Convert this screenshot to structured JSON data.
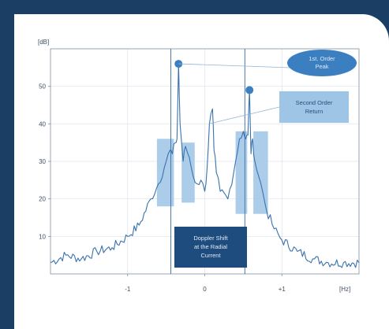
{
  "chart_data": {
    "type": "line",
    "ylabel": "[dB]",
    "xlabel": "[Hz]",
    "ylim": [
      0,
      60
    ],
    "xlim": [
      -2,
      2
    ],
    "yticks": [
      10,
      20,
      30,
      40,
      50
    ],
    "xticks": [
      {
        "value": -1,
        "label": "-1"
      },
      {
        "value": 0,
        "label": "0"
      },
      {
        "value": 1,
        "label": "+1"
      }
    ],
    "grid": true,
    "series": [
      {
        "x": [
          -2.0,
          -1.8,
          -1.6,
          -1.4,
          -1.2,
          -1.0,
          -0.85,
          -0.7,
          -0.6,
          -0.5,
          -0.45,
          -0.42,
          -0.38,
          -0.36,
          -0.34,
          -0.32,
          -0.28,
          -0.25,
          -0.2,
          -0.15,
          -0.1,
          -0.05,
          0.0,
          0.03,
          0.06,
          0.1,
          0.12,
          0.15,
          0.2,
          0.3,
          0.4,
          0.45,
          0.5,
          0.53,
          0.56,
          0.58,
          0.6,
          0.62,
          0.65,
          0.7,
          0.75,
          0.8,
          0.9,
          1.0,
          1.2,
          1.4,
          1.6,
          1.8,
          2.0
        ],
        "values": [
          3,
          5,
          4,
          6,
          7,
          10,
          13,
          20,
          24,
          30,
          33,
          32,
          35,
          36,
          56,
          40,
          30,
          34,
          31,
          26,
          24,
          25,
          22,
          28,
          40,
          44,
          33,
          27,
          22,
          20,
          30,
          36,
          38,
          36,
          37,
          49,
          32,
          36,
          30,
          26,
          22,
          17,
          12,
          9,
          6,
          4,
          3,
          3,
          3
        ]
      }
    ],
    "markers": [
      {
        "x": -0.34,
        "y": 56
      },
      {
        "x": 0.58,
        "y": 49
      }
    ],
    "shaded_regions": [
      {
        "x": [
          -0.62,
          -0.4
        ],
        "y": [
          18,
          36
        ]
      },
      {
        "x": [
          -0.3,
          -0.13
        ],
        "y": [
          19,
          35
        ]
      },
      {
        "x": [
          0.4,
          0.55
        ],
        "y": [
          16,
          38
        ]
      },
      {
        "x": [
          0.63,
          0.82
        ],
        "y": [
          16,
          38
        ]
      }
    ],
    "vlines": [
      -0.44,
      0.52
    ],
    "annotations": {
      "first_order": [
        "1st. Order",
        "Peak"
      ],
      "second_order": [
        "Second Order",
        "Return"
      ],
      "doppler": [
        "Doppler Shift",
        "at the Radial",
        "Current"
      ]
    }
  },
  "colors": {
    "background": "#1b3e64",
    "panel": "#ffffff",
    "line": "#3a72ad",
    "shade": "#9ec4e6",
    "marker": "#3c7fc0",
    "ellipse": "#3c7fc0",
    "label_box": "#9ec4e6",
    "doppler_box": "#1f4c7e"
  }
}
